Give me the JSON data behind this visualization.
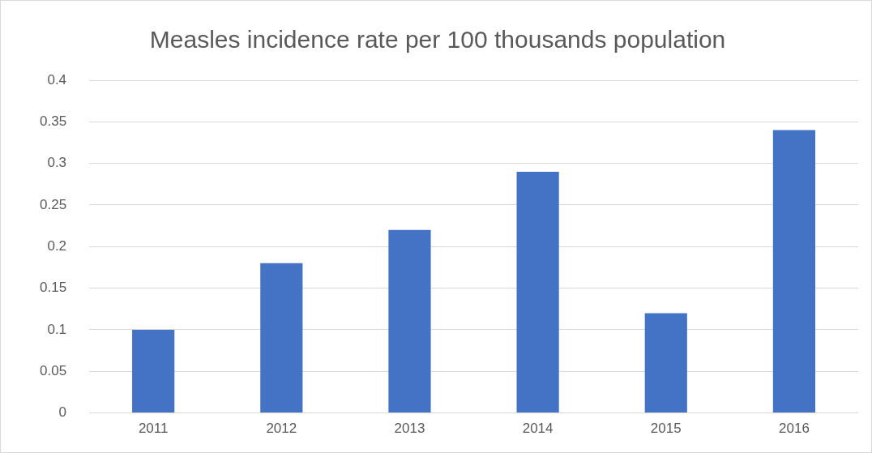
{
  "chart_data": {
    "type": "bar",
    "title": "Measles incidence rate per 100 thousands population",
    "categories": [
      "2011",
      "2012",
      "2013",
      "2014",
      "2015",
      "2016"
    ],
    "series": [
      {
        "color": "#4472c4",
        "values": [
          0.1,
          0.18,
          0.22,
          0.29,
          0.12,
          0.34
        ]
      }
    ],
    "ylim": [
      0,
      0.4
    ],
    "yticks": [
      0,
      0.05,
      0.1,
      0.15,
      0.2,
      0.25,
      0.3,
      0.35,
      0.4
    ],
    "grid": "y",
    "legend": false
  }
}
